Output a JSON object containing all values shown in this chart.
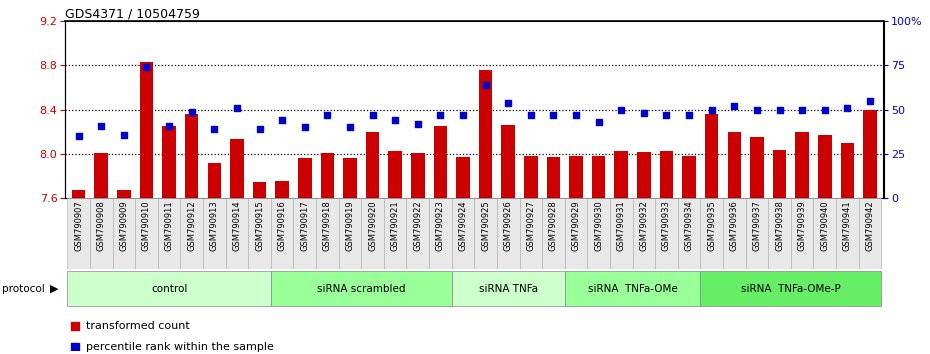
{
  "title": "GDS4371 / 10504759",
  "samples": [
    "GSM790907",
    "GSM790908",
    "GSM790909",
    "GSM790910",
    "GSM790911",
    "GSM790912",
    "GSM790913",
    "GSM790914",
    "GSM790915",
    "GSM790916",
    "GSM790917",
    "GSM790918",
    "GSM790919",
    "GSM790920",
    "GSM790921",
    "GSM790922",
    "GSM790923",
    "GSM790924",
    "GSM790925",
    "GSM790926",
    "GSM790927",
    "GSM790928",
    "GSM790929",
    "GSM790930",
    "GSM790931",
    "GSM790932",
    "GSM790933",
    "GSM790934",
    "GSM790935",
    "GSM790936",
    "GSM790937",
    "GSM790938",
    "GSM790939",
    "GSM790940",
    "GSM790941",
    "GSM790942"
  ],
  "bar_values": [
    7.67,
    8.01,
    7.67,
    8.83,
    8.25,
    8.36,
    7.92,
    8.14,
    7.75,
    7.76,
    7.96,
    8.01,
    7.96,
    8.2,
    8.03,
    8.01,
    8.25,
    7.97,
    8.76,
    8.26,
    7.98,
    7.97,
    7.98,
    7.98,
    8.03,
    8.02,
    8.03,
    7.98,
    8.36,
    8.2,
    8.15,
    8.04,
    8.2,
    8.17,
    8.1,
    8.4
  ],
  "percentile_values": [
    35,
    41,
    36,
    74,
    41,
    49,
    39,
    51,
    39,
    44,
    40,
    47,
    40,
    47,
    44,
    42,
    47,
    47,
    64,
    54,
    47,
    47,
    47,
    43,
    50,
    48,
    47,
    47,
    50,
    52,
    50,
    50,
    50,
    50,
    51,
    55
  ],
  "ylim_left": [
    7.6,
    9.2
  ],
  "ylim_right": [
    0,
    100
  ],
  "yticks_left": [
    7.6,
    8.0,
    8.4,
    8.8,
    9.2
  ],
  "yticks_right": [
    0,
    25,
    50,
    75,
    100
  ],
  "ytick_labels_right": [
    "0",
    "25",
    "50",
    "75",
    "100%"
  ],
  "bar_color": "#CC0000",
  "dot_color": "#0000CC",
  "groups": [
    {
      "label": "control",
      "start": 0,
      "end": 8,
      "color": "#CCFFCC"
    },
    {
      "label": "siRNA scrambled",
      "start": 9,
      "end": 16,
      "color": "#99FF99"
    },
    {
      "label": "siRNA TNFa",
      "start": 17,
      "end": 21,
      "color": "#CCFFCC"
    },
    {
      "label": "siRNA  TNFa-OMe",
      "start": 22,
      "end": 27,
      "color": "#99FF99"
    },
    {
      "label": "siRNA  TNFa-OMe-P",
      "start": 28,
      "end": 35,
      "color": "#66EE66"
    }
  ],
  "tick_label_color_left": "#CC0000",
  "tick_label_color_right": "#0000CC",
  "legend_items": [
    {
      "label": "transformed count",
      "color": "#CC0000"
    },
    {
      "label": "percentile rank within the sample",
      "color": "#0000CC"
    }
  ]
}
